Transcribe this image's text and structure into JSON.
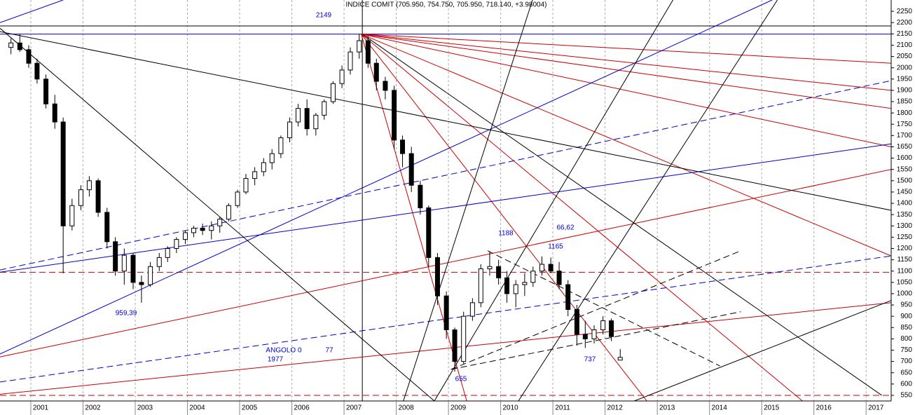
{
  "chart_data": {
    "type": "candlestick",
    "title": "INDICE COMIT (705.950, 754.750, 705.950, 718.140, +3.98004)",
    "xlim": [
      2000.41,
      2017.48
    ],
    "xticks": [
      2001,
      2002,
      2003,
      2004,
      2005,
      2006,
      2007,
      2008,
      2009,
      2010,
      2011,
      2012,
      2013,
      2014,
      2015,
      2016,
      2017
    ],
    "ylim": [
      525,
      2300
    ],
    "yticks": [
      550,
      600,
      650,
      700,
      750,
      800,
      850,
      900,
      950,
      1000,
      1050,
      1100,
      1150,
      1200,
      1250,
      1300,
      1350,
      1400,
      1450,
      1500,
      1550,
      1600,
      1650,
      1700,
      1750,
      1800,
      1850,
      1900,
      1950,
      2000,
      2050,
      2100,
      2150,
      2200,
      2250
    ],
    "grid": true,
    "up_color": "#ffffff",
    "down_color": "#000000",
    "x": [
      2000.62,
      2000.79,
      2000.96,
      2001.12,
      2001.29,
      2001.46,
      2001.62,
      2001.79,
      2001.96,
      2002.12,
      2002.29,
      2002.46,
      2002.62,
      2002.79,
      2002.96,
      2003.12,
      2003.29,
      2003.46,
      2003.62,
      2003.79,
      2003.96,
      2004.12,
      2004.29,
      2004.46,
      2004.62,
      2004.79,
      2004.96,
      2005.12,
      2005.29,
      2005.46,
      2005.62,
      2005.79,
      2005.96,
      2006.12,
      2006.29,
      2006.46,
      2006.62,
      2006.79,
      2006.96,
      2007.12,
      2007.29,
      2007.46,
      2007.62,
      2007.79,
      2007.96,
      2008.12,
      2008.29,
      2008.46,
      2008.62,
      2008.79,
      2008.96,
      2009.12,
      2009.29,
      2009.46,
      2009.62,
      2009.79,
      2009.96,
      2010.12,
      2010.29,
      2010.46,
      2010.62,
      2010.79,
      2010.96,
      2011.12,
      2011.29,
      2011.46,
      2011.62,
      2011.79,
      2011.96,
      2012.12,
      2012.29
    ],
    "open": [
      2090,
      2110,
      2080,
      2020,
      1950,
      1840,
      1760,
      1300,
      1390,
      1460,
      1500,
      1360,
      1230,
      1100,
      1170,
      1050,
      1040,
      1120,
      1160,
      1200,
      1240,
      1270,
      1290,
      1280,
      1300,
      1330,
      1390,
      1450,
      1510,
      1540,
      1580,
      1620,
      1690,
      1760,
      1820,
      1730,
      1790,
      1850,
      1930,
      1990,
      2070,
      2120,
      2020,
      1940,
      1900,
      1680,
      1620,
      1480,
      1380,
      1160,
      990,
      840,
      700,
      900,
      960,
      1110,
      1120,
      1070,
      1000,
      1040,
      1050,
      1100,
      1130,
      1100,
      1040,
      930,
      820,
      800,
      840,
      880,
      705.95
    ],
    "high": [
      2130,
      2150,
      2100,
      2040,
      1970,
      1880,
      1780,
      1420,
      1480,
      1520,
      1510,
      1380,
      1250,
      1200,
      1180,
      1080,
      1140,
      1180,
      1210,
      1250,
      1280,
      1300,
      1310,
      1320,
      1340,
      1400,
      1460,
      1530,
      1560,
      1600,
      1640,
      1700,
      1780,
      1840,
      1860,
      1800,
      1860,
      1940,
      2010,
      2090,
      2150,
      2140,
      2040,
      1960,
      1920,
      1700,
      1650,
      1500,
      1390,
      1180,
      1010,
      850,
      920,
      980,
      1130,
      1188,
      1150,
      1100,
      1060,
      1090,
      1120,
      1165,
      1160,
      1140,
      1060,
      950,
      880,
      860,
      900,
      890,
      754.75
    ],
    "low": [
      2060,
      2070,
      2000,
      1930,
      1820,
      1730,
      1090,
      1280,
      1370,
      1430,
      1340,
      1200,
      1080,
      1040,
      1020,
      960,
      1030,
      1100,
      1140,
      1180,
      1220,
      1250,
      1260,
      1240,
      1270,
      1320,
      1380,
      1440,
      1480,
      1520,
      1550,
      1600,
      1670,
      1740,
      1700,
      1700,
      1770,
      1840,
      1910,
      1970,
      2040,
      2000,
      1900,
      1860,
      1640,
      1560,
      1450,
      1350,
      1120,
      950,
      800,
      655,
      690,
      880,
      940,
      1080,
      1040,
      960,
      940,
      990,
      1030,
      1080,
      1090,
      1020,
      900,
      770,
      760,
      780,
      820,
      790,
      705.95
    ],
    "close": [
      2110,
      2080,
      2020,
      1950,
      1840,
      1760,
      1300,
      1390,
      1460,
      1500,
      1360,
      1230,
      1100,
      1170,
      1050,
      1040,
      1120,
      1160,
      1200,
      1240,
      1270,
      1290,
      1280,
      1300,
      1330,
      1390,
      1450,
      1510,
      1540,
      1580,
      1620,
      1690,
      1760,
      1820,
      1730,
      1790,
      1850,
      1930,
      1990,
      2070,
      2120,
      2020,
      1940,
      1900,
      1680,
      1620,
      1480,
      1380,
      1160,
      990,
      840,
      700,
      900,
      960,
      1110,
      1120,
      1070,
      1000,
      1040,
      1050,
      1100,
      1130,
      1100,
      1040,
      930,
      820,
      800,
      840,
      880,
      810,
      718.14
    ],
    "trendlines": [
      {
        "points": [
          2000.41,
          2185,
          2017.48,
          2185
        ],
        "color": "#000000",
        "dash": false
      },
      {
        "points": [
          2000.41,
          2149,
          2017.48,
          2149
        ],
        "color": "#0000cc",
        "dash": false
      },
      {
        "points": [
          2000.41,
          1095,
          2017.48,
          1095
        ],
        "color": "#cc0000",
        "dash": true
      },
      {
        "points": [
          2000.41,
          550,
          2017.48,
          550
        ],
        "color": "#cc0000",
        "dash": true
      },
      {
        "points": [
          2007.35,
          2300,
          2007.35,
          525
        ],
        "color": "#000000",
        "dash": false
      },
      {
        "points": [
          2007.33,
          2149,
          2017.48,
          2020
        ],
        "color": "#cc0000",
        "dash": false
      },
      {
        "points": [
          2007.33,
          2149,
          2017.48,
          1900
        ],
        "color": "#cc0000",
        "dash": false
      },
      {
        "points": [
          2007.33,
          2149,
          2017.48,
          1820
        ],
        "color": "#cc0000",
        "dash": false
      },
      {
        "points": [
          2007.33,
          2149,
          2017.48,
          1650
        ],
        "color": "#cc0000",
        "dash": false
      },
      {
        "points": [
          2007.33,
          2149,
          2017.48,
          1167
        ],
        "color": "#cc0000",
        "dash": false
      },
      {
        "points": [
          2007.33,
          2149,
          2015.78,
          525
        ],
        "color": "#cc0000",
        "dash": false
      },
      {
        "points": [
          2007.33,
          2149,
          2012.8,
          525
        ],
        "color": "#cc0000",
        "dash": false
      },
      {
        "points": [
          2007.33,
          2149,
          2009.35,
          525
        ],
        "color": "#cc0000",
        "dash": false
      },
      {
        "points": [
          2000.41,
          720,
          2017.48,
          1550
        ],
        "color": "#cc0000",
        "dash": false
      },
      {
        "points": [
          2000.41,
          555,
          2017.48,
          960
        ],
        "color": "#cc0000",
        "dash": false
      },
      {
        "points": [
          2000.41,
          733,
          2015.2,
          2300
        ],
        "color": "#0000cc",
        "dash": false
      },
      {
        "points": [
          2000.41,
          1095,
          2017.48,
          1663
        ],
        "color": "#0000cc",
        "dash": false
      },
      {
        "points": [
          2000.41,
          2200,
          2001.62,
          2300
        ],
        "color": "#0000cc",
        "dash": false
      },
      {
        "points": [
          2000.41,
          609,
          2017.48,
          1167
        ],
        "color": "#0000cc",
        "dash": true
      },
      {
        "points": [
          2000.41,
          1105,
          2017.48,
          1943
        ],
        "color": "#0000cc",
        "dash": true
      },
      {
        "points": [
          2000.41,
          2160,
          2017.48,
          1369
        ],
        "color": "#000000",
        "dash": false
      },
      {
        "points": [
          2000.41,
          2175,
          2008.73,
          525
        ],
        "color": "#000000",
        "dash": false
      },
      {
        "points": [
          2007.35,
          2149,
          2017.3,
          550
        ],
        "color": "#000000",
        "dash": false
      },
      {
        "points": [
          2008.06,
          470,
          2010.61,
          2300
        ],
        "color": "#000000",
        "dash": false
      },
      {
        "points": [
          2008.73,
          525,
          2013.3,
          2300
        ],
        "color": "#000000",
        "dash": false
      },
      {
        "points": [
          2010.34,
          525,
          2015.3,
          2300
        ],
        "color": "#000000",
        "dash": false
      },
      {
        "points": [
          2011.95,
          470,
          2017.48,
          970
        ],
        "color": "#000000",
        "dash": false
      },
      {
        "points": [
          2009.05,
          665,
          2014.6,
          1190
        ],
        "color": "#000000",
        "dash": true
      },
      {
        "points": [
          2009.05,
          665,
          2014.6,
          920
        ],
        "color": "#000000",
        "dash": true
      },
      {
        "points": [
          2009.75,
          1190,
          2014.2,
          680
        ],
        "color": "#000000",
        "dash": true
      }
    ],
    "annotations": [
      "2149",
      "1188",
      "66,62",
      "1165",
      "959,39",
      "ANGOLO 0",
      "1977",
      "77",
      "737",
      "655"
    ]
  }
}
